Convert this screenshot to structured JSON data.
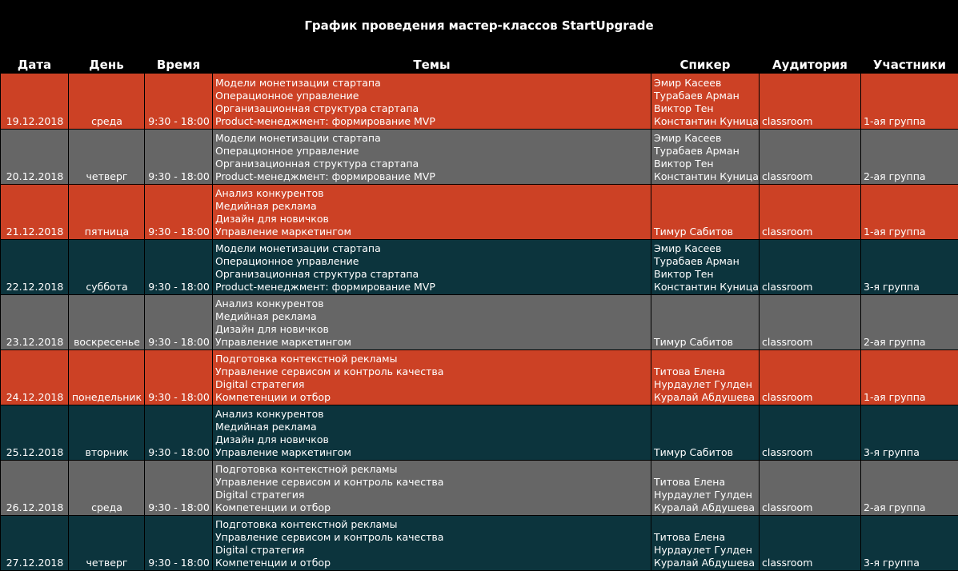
{
  "header": {
    "title": "График проведения мастер-классов StartUpgrade"
  },
  "table": {
    "columns": [
      "Дата",
      "День",
      "Время",
      "Темы",
      "Спикер",
      "Аудитория",
      "Участники"
    ],
    "rows": [
      {
        "color": "#cc4125",
        "date": "19.12.2018",
        "day": "среда",
        "time": "9:30 - 18:00",
        "topics": [
          "Модели монетизации стартапа",
          "Операционное управление",
          "Организационная структура стартапа",
          "Product-менеджмент: формирование MVP"
        ],
        "speakers": [
          "Эмир Касеев",
          "Турабаев Арман",
          "Виктор Тен",
          "Константин Куница"
        ],
        "audience": "classroom",
        "group": "1-ая группа"
      },
      {
        "color": "#666666",
        "date": "20.12.2018",
        "day": "четверг",
        "time": "9:30 - 18:00",
        "topics": [
          "Модели монетизации стартапа",
          "Операционное управление",
          "Организационная структура стартапа",
          "Product-менеджмент: формирование MVP"
        ],
        "speakers": [
          "Эмир Касеев",
          "Турабаев Арман",
          "Виктор Тен",
          "Константин Куница"
        ],
        "audience": "classroom",
        "group": "2-ая группа"
      },
      {
        "color": "#cc4125",
        "date": "21.12.2018",
        "day": "пятница",
        "time": "9:30 - 18:00",
        "topics": [
          "Анализ конкурентов",
          "Медийная реклама",
          "Дизайн для новичков",
          "Управление маркетингом"
        ],
        "speakers": [
          "Тимур Сабитов"
        ],
        "audience": "classroom",
        "group": "1-ая группа"
      },
      {
        "color": "#0c343d",
        "date": "22.12.2018",
        "day": "суббота",
        "time": "9:30 - 18:00",
        "topics": [
          "Модели монетизации стартапа",
          "Операционное управление",
          "Организационная структура стартапа",
          "Product-менеджмент: формирование MVP"
        ],
        "speakers": [
          "Эмир Касеев",
          "Турабаев Арман",
          "Виктор Тен",
          "Константин Куница"
        ],
        "audience": "classroom",
        "group": "3-я группа"
      },
      {
        "color": "#666666",
        "date": "23.12.2018",
        "day": "воскресенье",
        "time": "9:30 - 18:00",
        "topics": [
          "Анализ конкурентов",
          "Медийная реклама",
          "Дизайн для новичков",
          "Управление маркетингом"
        ],
        "speakers": [
          "Тимур Сабитов"
        ],
        "audience": "classroom",
        "group": "2-ая группа"
      },
      {
        "color": "#cc4125",
        "date": "24.12.2018",
        "day": "понедельник",
        "time": "9:30 - 18:00",
        "topics": [
          "Подготовка контекстной рекламы",
          "Управление сервисом и контроль качества",
          "Digital стратегия",
          "Компетенции и отбор"
        ],
        "speakers": [
          "Титова Елена",
          "Нурдаулет Гулден",
          "Куралай Абдушева"
        ],
        "audience": "classroom",
        "group": "1-ая группа"
      },
      {
        "color": "#0c343d",
        "date": "25.12.2018",
        "day": "вторник",
        "time": "9:30 - 18:00",
        "topics": [
          "Анализ конкурентов",
          "Медийная реклама",
          "Дизайн для новичков",
          "Управление маркетингом"
        ],
        "speakers": [
          "Тимур Сабитов"
        ],
        "audience": "classroom",
        "group": "3-я группа"
      },
      {
        "color": "#666666",
        "date": "26.12.2018",
        "day": "среда",
        "time": "9:30 - 18:00",
        "topics": [
          "Подготовка контекстной рекламы",
          "Управление сервисом и контроль качества",
          "Digital стратегия",
          "Компетенции и отбор"
        ],
        "speakers": [
          "Титова Елена",
          "Нурдаулет Гулден",
          "Куралай Абдушева"
        ],
        "audience": "classroom",
        "group": "2-ая группа"
      },
      {
        "color": "#0c343d",
        "date": "27.12.2018",
        "day": "четверг",
        "time": "9:30 - 18:00",
        "topics": [
          "Подготовка контекстной рекламы",
          "Управление сервисом и контроль качества",
          "Digital стратегия",
          "Компетенции и отбор"
        ],
        "speakers": [
          "Титова Елена",
          "Нурдаулет Гулден",
          "Куралай Абдушева"
        ],
        "audience": "classroom",
        "group": "3-я группа"
      }
    ]
  }
}
